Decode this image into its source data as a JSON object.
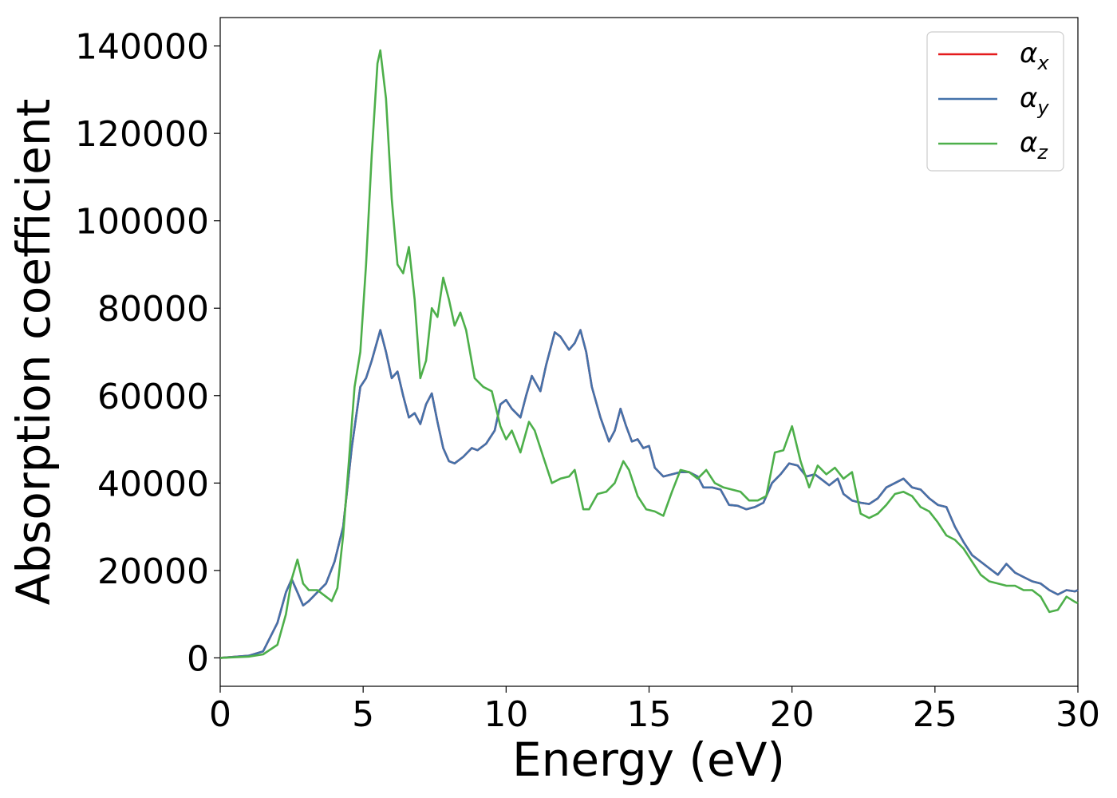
{
  "chart_data": {
    "type": "line",
    "title": "",
    "xlabel": "Energy (eV)",
    "ylabel": "Absorption coefficient",
    "xlim": [
      0,
      30
    ],
    "ylim": [
      -6500,
      146500
    ],
    "xticks": [
      0,
      5,
      10,
      15,
      20,
      25,
      30
    ],
    "xtick_labels": [
      "0",
      "5",
      "10",
      "15",
      "20",
      "25",
      "30"
    ],
    "yticks": [
      0,
      20000,
      40000,
      60000,
      80000,
      100000,
      120000,
      140000
    ],
    "ytick_labels": [
      "0",
      "20000",
      "40000",
      "60000",
      "80000",
      "100000",
      "120000",
      "140000"
    ],
    "grid": false,
    "legend_position": "top-right",
    "series": [
      {
        "name": "αx",
        "symbol": "α",
        "subscript": "x",
        "color": "#e41a1c",
        "x": [
          0,
          1,
          1.5,
          2,
          2.3,
          2.5,
          2.7,
          2.9,
          3.1,
          3.4,
          3.7,
          4.0,
          4.3,
          4.6,
          4.9,
          5.1,
          5.3,
          5.6,
          5.8,
          6.0,
          6.2,
          6.4,
          6.6,
          6.8,
          7.0,
          7.2,
          7.4,
          7.6,
          7.8,
          8.0,
          8.2,
          8.5,
          8.8,
          9.0,
          9.3,
          9.6,
          9.8,
          10.0,
          10.2,
          10.5,
          10.7,
          10.9,
          11.2,
          11.4,
          11.7,
          11.9,
          12.2,
          12.4,
          12.6,
          12.8,
          13.0,
          13.3,
          13.6,
          13.8,
          14.0,
          14.2,
          14.4,
          14.6,
          14.8,
          15.0,
          15.2,
          15.5,
          15.8,
          16.1,
          16.4,
          16.7,
          16.9,
          17.2,
          17.5,
          17.8,
          18.1,
          18.4,
          18.7,
          19.0,
          19.3,
          19.6,
          19.9,
          20.2,
          20.5,
          20.8,
          21.0,
          21.3,
          21.6,
          21.8,
          22.1,
          22.4,
          22.7,
          23.0,
          23.3,
          23.6,
          23.9,
          24.2,
          24.5,
          24.8,
          25.1,
          25.4,
          25.7,
          26.0,
          26.3,
          26.6,
          26.9,
          27.2,
          27.5,
          27.8,
          28.1,
          28.4,
          28.7,
          29.0,
          29.3,
          29.6,
          29.9,
          30
        ],
        "y": [
          0,
          500,
          1500,
          8000,
          15000,
          18000,
          15000,
          12000,
          13000,
          15000,
          17000,
          22000,
          30000,
          48000,
          62000,
          64000,
          68000,
          75000,
          70000,
          64000,
          65500,
          60000,
          55000,
          56000,
          53500,
          58000,
          60500,
          54000,
          48000,
          45000,
          44500,
          46000,
          48000,
          47500,
          49000,
          52000,
          58000,
          59000,
          57000,
          55000,
          60000,
          64500,
          61000,
          67000,
          74500,
          73500,
          70500,
          72000,
          75000,
          70000,
          62000,
          55000,
          49500,
          52000,
          57000,
          53000,
          49500,
          50000,
          48000,
          48500,
          43500,
          41500,
          42000,
          42500,
          42500,
          41500,
          39000,
          39000,
          38500,
          35000,
          34800,
          34000,
          34500,
          35500,
          40000,
          42000,
          44500,
          44000,
          41500,
          42000,
          41000,
          39500,
          41000,
          37500,
          36000,
          35500,
          35200,
          36500,
          39000,
          40000,
          41000,
          39000,
          38500,
          36500,
          35000,
          34500,
          30000,
          26500,
          23500,
          22000,
          20500,
          19000,
          21500,
          19500,
          18500,
          17500,
          17000,
          15500,
          14500,
          15500,
          15200,
          15500
        ]
      },
      {
        "name": "αy",
        "symbol": "α",
        "subscript": "y",
        "color": "#4472aa",
        "x": [
          0,
          1,
          1.5,
          2,
          2.3,
          2.5,
          2.7,
          2.9,
          3.1,
          3.4,
          3.7,
          4.0,
          4.3,
          4.6,
          4.9,
          5.1,
          5.3,
          5.6,
          5.8,
          6.0,
          6.2,
          6.4,
          6.6,
          6.8,
          7.0,
          7.2,
          7.4,
          7.6,
          7.8,
          8.0,
          8.2,
          8.5,
          8.8,
          9.0,
          9.3,
          9.6,
          9.8,
          10.0,
          10.2,
          10.5,
          10.7,
          10.9,
          11.2,
          11.4,
          11.7,
          11.9,
          12.2,
          12.4,
          12.6,
          12.8,
          13.0,
          13.3,
          13.6,
          13.8,
          14.0,
          14.2,
          14.4,
          14.6,
          14.8,
          15.0,
          15.2,
          15.5,
          15.8,
          16.1,
          16.4,
          16.7,
          16.9,
          17.2,
          17.5,
          17.8,
          18.1,
          18.4,
          18.7,
          19.0,
          19.3,
          19.6,
          19.9,
          20.2,
          20.5,
          20.8,
          21.0,
          21.3,
          21.6,
          21.8,
          22.1,
          22.4,
          22.7,
          23.0,
          23.3,
          23.6,
          23.9,
          24.2,
          24.5,
          24.8,
          25.1,
          25.4,
          25.7,
          26.0,
          26.3,
          26.6,
          26.9,
          27.2,
          27.5,
          27.8,
          28.1,
          28.4,
          28.7,
          29.0,
          29.3,
          29.6,
          29.9,
          30
        ],
        "y": [
          0,
          500,
          1500,
          8000,
          15000,
          18000,
          15000,
          12000,
          13000,
          15000,
          17000,
          22000,
          30000,
          48000,
          62000,
          64000,
          68000,
          75000,
          70000,
          64000,
          65500,
          60000,
          55000,
          56000,
          53500,
          58000,
          60500,
          54000,
          48000,
          45000,
          44500,
          46000,
          48000,
          47500,
          49000,
          52000,
          58000,
          59000,
          57000,
          55000,
          60000,
          64500,
          61000,
          67000,
          74500,
          73500,
          70500,
          72000,
          75000,
          70000,
          62000,
          55000,
          49500,
          52000,
          57000,
          53000,
          49500,
          50000,
          48000,
          48500,
          43500,
          41500,
          42000,
          42500,
          42500,
          41500,
          39000,
          39000,
          38500,
          35000,
          34800,
          34000,
          34500,
          35500,
          40000,
          42000,
          44500,
          44000,
          41500,
          42000,
          41000,
          39500,
          41000,
          37500,
          36000,
          35500,
          35200,
          36500,
          39000,
          40000,
          41000,
          39000,
          38500,
          36500,
          35000,
          34500,
          30000,
          26500,
          23500,
          22000,
          20500,
          19000,
          21500,
          19500,
          18500,
          17500,
          17000,
          15500,
          14500,
          15500,
          15200,
          15500
        ]
      },
      {
        "name": "αz",
        "symbol": "α",
        "subscript": "z",
        "color": "#4daf4a",
        "x": [
          0,
          1,
          1.5,
          2,
          2.3,
          2.5,
          2.7,
          2.9,
          3.1,
          3.4,
          3.7,
          3.9,
          4.1,
          4.3,
          4.5,
          4.7,
          4.9,
          5.1,
          5.3,
          5.5,
          5.6,
          5.8,
          6.0,
          6.2,
          6.4,
          6.6,
          6.8,
          7.0,
          7.2,
          7.4,
          7.6,
          7.8,
          8.0,
          8.2,
          8.4,
          8.6,
          8.9,
          9.2,
          9.5,
          9.8,
          10.0,
          10.2,
          10.5,
          10.8,
          11.0,
          11.3,
          11.6,
          11.9,
          12.2,
          12.4,
          12.7,
          12.9,
          13.2,
          13.5,
          13.8,
          14.1,
          14.3,
          14.6,
          14.9,
          15.2,
          15.5,
          15.8,
          16.1,
          16.4,
          16.7,
          17.0,
          17.3,
          17.6,
          17.9,
          18.2,
          18.5,
          18.8,
          19.1,
          19.4,
          19.7,
          20.0,
          20.3,
          20.6,
          20.9,
          21.2,
          21.5,
          21.8,
          22.1,
          22.4,
          22.7,
          23.0,
          23.3,
          23.6,
          23.9,
          24.2,
          24.5,
          24.8,
          25.1,
          25.4,
          25.7,
          26.0,
          26.3,
          26.6,
          26.9,
          27.2,
          27.5,
          27.8,
          28.1,
          28.4,
          28.7,
          29.0,
          29.3,
          29.6,
          29.9,
          30
        ],
        "y": [
          0,
          300,
          800,
          3000,
          10000,
          18000,
          22500,
          17000,
          15500,
          15500,
          14000,
          13000,
          16000,
          28000,
          45000,
          62000,
          70000,
          90000,
          115000,
          136000,
          139000,
          128000,
          105000,
          90000,
          88000,
          94000,
          82000,
          64000,
          68000,
          80000,
          78000,
          87000,
          82000,
          76000,
          79000,
          75000,
          64000,
          62000,
          61000,
          53000,
          50000,
          52000,
          47000,
          54000,
          52000,
          46000,
          40000,
          41000,
          41500,
          43000,
          34000,
          34000,
          37500,
          38000,
          40000,
          45000,
          43000,
          37000,
          34000,
          33500,
          32500,
          38000,
          43000,
          42500,
          41000,
          43000,
          40000,
          39000,
          38500,
          38000,
          36000,
          36000,
          37000,
          47000,
          47500,
          53000,
          45000,
          39000,
          44000,
          42000,
          43500,
          41000,
          42500,
          33000,
          32000,
          33000,
          35000,
          37500,
          38000,
          37000,
          34500,
          33500,
          31000,
          28000,
          27000,
          25000,
          22000,
          19000,
          17500,
          17000,
          16500,
          16500,
          15500,
          15500,
          14000,
          10500,
          11000,
          14000,
          12800,
          12500
        ]
      }
    ]
  }
}
